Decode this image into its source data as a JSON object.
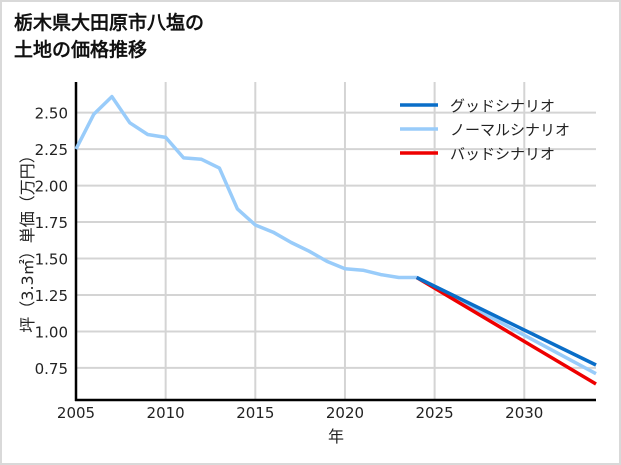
{
  "title_lines": [
    "栃木県大田原市八塩の",
    "土地の価格推移"
  ],
  "colors": {
    "good": "#0a6ec8",
    "normal": "#99ccfa",
    "bad": "#ee0000",
    "grid": "#d4d4d4",
    "axis": "#000000"
  },
  "chart_data": {
    "type": "line",
    "title": "栃木県大田原市八塩の土地の価格推移",
    "xlabel": "年",
    "ylabel": "坪（3.3㎡）単価（万円）",
    "xlim": [
      2005,
      2034
    ],
    "ylim": [
      0.53,
      2.71
    ],
    "x_ticks": [
      2005,
      2010,
      2015,
      2020,
      2025,
      2030
    ],
    "y_ticks": [
      0.75,
      1.0,
      1.25,
      1.5,
      1.75,
      2.0,
      2.25,
      2.5
    ],
    "y_tick_labels": [
      "0.75",
      "1.00",
      "1.25",
      "1.50",
      "1.75",
      "2.00",
      "2.25",
      "2.50"
    ],
    "grid": true,
    "legend_position": "upper right",
    "series": [
      {
        "name": "グッドシナリオ",
        "color": "#0a6ec8",
        "x": [
          2024,
          2034
        ],
        "values": [
          1.37,
          0.77
        ]
      },
      {
        "name": "ノーマルシナリオ",
        "color": "#99ccfa",
        "x": [
          2005,
          2006,
          2007,
          2008,
          2009,
          2010,
          2011,
          2012,
          2013,
          2014,
          2015,
          2016,
          2017,
          2018,
          2019,
          2020,
          2021,
          2022,
          2023,
          2024,
          2034
        ],
        "values": [
          2.25,
          2.49,
          2.61,
          2.43,
          2.35,
          2.33,
          2.19,
          2.18,
          2.12,
          1.84,
          1.73,
          1.68,
          1.61,
          1.55,
          1.48,
          1.43,
          1.42,
          1.39,
          1.37,
          1.37,
          0.71
        ]
      },
      {
        "name": "バッドシナリオ",
        "color": "#ee0000",
        "x": [
          2024,
          2034
        ],
        "values": [
          1.37,
          0.64
        ]
      }
    ]
  }
}
